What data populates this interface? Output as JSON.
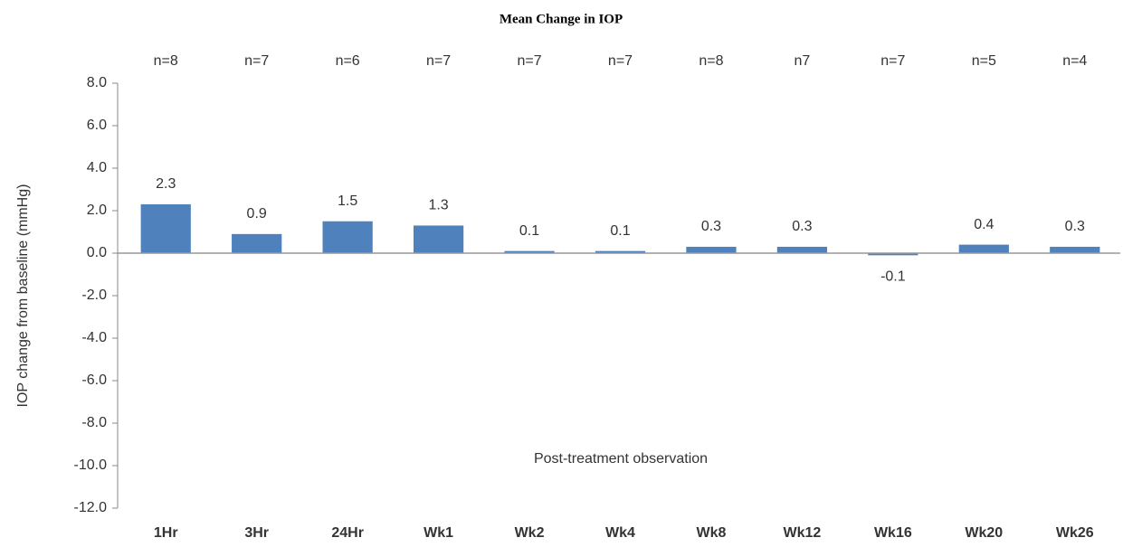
{
  "chart_data": {
    "type": "bar",
    "title": "Mean Change in IOP",
    "y_axis_label": "IOP change from baseline (mmHg)",
    "x_axis_label": "Post-treatment observation",
    "categories": [
      "1Hr",
      "3Hr",
      "24Hr",
      "Wk1",
      "Wk2",
      "Wk4",
      "Wk8",
      "Wk12",
      "Wk16",
      "Wk20",
      "Wk26"
    ],
    "values": [
      2.3,
      0.9,
      1.5,
      1.3,
      0.1,
      0.1,
      0.3,
      0.3,
      -0.1,
      0.4,
      0.3
    ],
    "annotations": [
      "n=8",
      "n=7",
      "n=6",
      "n=7",
      "n=7",
      "n=7",
      "n=8",
      "n7",
      "n=7",
      "n=5",
      "n=4"
    ],
    "color": "#4f81bd",
    "ylim": [
      -12,
      8
    ],
    "yticks": [
      {
        "value": -12,
        "label": "-12.0"
      },
      {
        "value": -10,
        "label": "-10.0"
      },
      {
        "value": -8,
        "label": "-8.0"
      },
      {
        "value": -6,
        "label": "-6.0"
      },
      {
        "value": -4,
        "label": "-4.0"
      },
      {
        "value": -2,
        "label": "-2.0"
      },
      {
        "value": 0,
        "label": "0.0"
      },
      {
        "value": 2,
        "label": "2.0"
      },
      {
        "value": 4,
        "label": "4.0"
      },
      {
        "value": 6,
        "label": "6.0"
      },
      {
        "value": 8,
        "label": "8.0"
      }
    ],
    "grid": false
  }
}
